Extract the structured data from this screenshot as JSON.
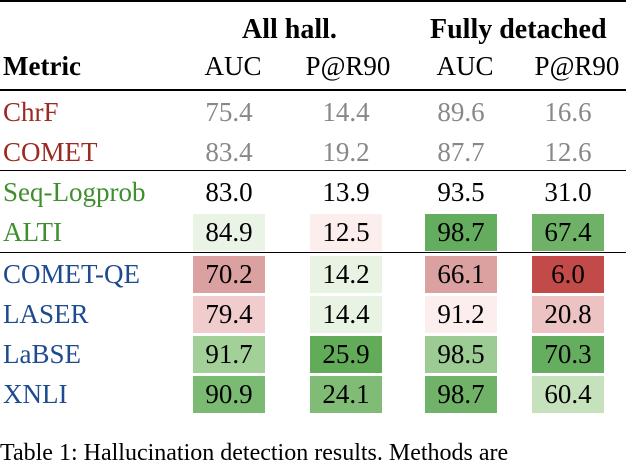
{
  "header": {
    "group1": "All hall.",
    "group2": "Fully detached",
    "metric_label": "Metric",
    "columns": [
      "AUC",
      "P@R90",
      "AUC",
      "P@R90"
    ]
  },
  "rows": [
    {
      "metric": "ChrF",
      "metric_color": "#9b2a22",
      "values": [
        "75.4",
        "14.4",
        "89.6",
        "16.6"
      ],
      "value_color": "#888888",
      "cells": [
        "#ffffff",
        "#ffffff",
        "#ffffff",
        "#ffffff"
      ]
    },
    {
      "metric": "COMET",
      "metric_color": "#9b2a22",
      "values": [
        "83.4",
        "19.2",
        "87.7",
        "12.6"
      ],
      "value_color": "#888888",
      "cells": [
        "#ffffff",
        "#ffffff",
        "#ffffff",
        "#ffffff"
      ]
    },
    {
      "metric": "Seq-Logprob",
      "metric_color": "#3f8f2e",
      "values": [
        "83.0",
        "13.9",
        "93.5",
        "31.0"
      ],
      "value_color": "#000000",
      "cells": [
        "#ffffff",
        "#ffffff",
        "#ffffff",
        "#ffffff"
      ]
    },
    {
      "metric": "ALTI",
      "metric_color": "#3f8f2e",
      "values": [
        "84.9",
        "12.5",
        "98.7",
        "67.4"
      ],
      "value_color": "#000000",
      "cells": [
        "#eaf4e6",
        "#fbeeed",
        "#65ad5e",
        "#6fb267"
      ]
    },
    {
      "metric": "COMET-QE",
      "metric_color": "#1e4a8f",
      "values": [
        "70.2",
        "14.2",
        "66.1",
        "6.0"
      ],
      "value_color": "#000000",
      "cells": [
        "#dba0a0",
        "#e8f3e4",
        "#dba0a0",
        "#c24a48"
      ]
    },
    {
      "metric": "LASER",
      "metric_color": "#1e4a8f",
      "values": [
        "79.4",
        "14.4",
        "91.2",
        "20.8"
      ],
      "value_color": "#000000",
      "cells": [
        "#f1cccc",
        "#e8f3e4",
        "#fbeeed",
        "#ecc2c2"
      ]
    },
    {
      "metric": "LaBSE",
      "metric_color": "#1e4a8f",
      "values": [
        "91.7",
        "25.9",
        "98.5",
        "70.3"
      ],
      "value_color": "#000000",
      "cells": [
        "#a3cf98",
        "#61ab59",
        "#9ccb93",
        "#66ae5f"
      ]
    },
    {
      "metric": "XNLI",
      "metric_color": "#1e4a8f",
      "values": [
        "90.9",
        "24.1",
        "98.7",
        "60.4"
      ],
      "value_color": "#000000",
      "cells": [
        "#7bba72",
        "#80bc76",
        "#6fb268",
        "#c6e2bd"
      ]
    }
  ],
  "caption": "Table 1: Hallucination detection results. Methods are"
}
